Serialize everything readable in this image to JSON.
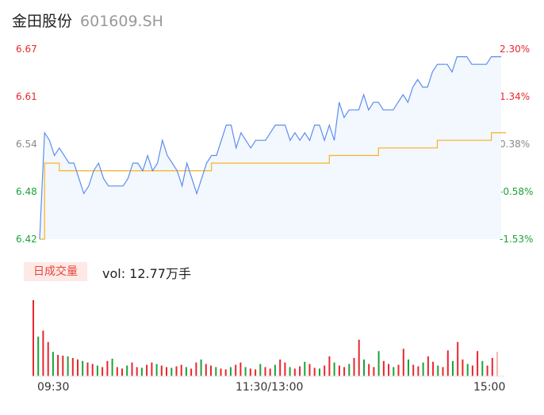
{
  "header": {
    "name": "金田股份",
    "code": "601609.SH"
  },
  "colors": {
    "up": "#e8262d",
    "down": "#1aa33a",
    "neutral": "#888888",
    "price_line": "#5b8def",
    "avg_line": "#f5b324",
    "area": "#f3f7fe"
  },
  "chart_data": [
    {
      "type": "line",
      "title": "",
      "y_ticks_left": [
        "6.67",
        "6.61",
        "6.54",
        "6.48",
        "6.42"
      ],
      "y_ticks_right": [
        "2.30%",
        "1.34%",
        "0.38%",
        "-0.58%",
        "-1.53%"
      ],
      "x_ticks": [
        "09:30",
        "11:30/13:00",
        "15:00"
      ],
      "ylim": [
        6.42,
        6.67
      ],
      "series": [
        {
          "role": "price",
          "values": [
            6.42,
            6.56,
            6.55,
            6.53,
            6.54,
            6.53,
            6.52,
            6.52,
            6.5,
            6.48,
            6.49,
            6.51,
            6.52,
            6.5,
            6.49,
            6.49,
            6.49,
            6.49,
            6.5,
            6.52,
            6.52,
            6.51,
            6.53,
            6.51,
            6.52,
            6.55,
            6.53,
            6.52,
            6.51,
            6.49,
            6.52,
            6.5,
            6.48,
            6.5,
            6.52,
            6.53,
            6.53,
            6.55,
            6.57,
            6.57,
            6.54,
            6.56,
            6.55,
            6.54,
            6.55,
            6.55,
            6.55,
            6.56,
            6.57,
            6.57,
            6.57,
            6.55,
            6.56,
            6.55,
            6.56,
            6.55,
            6.57,
            6.57,
            6.55,
            6.57,
            6.55,
            6.6,
            6.58,
            6.59,
            6.59,
            6.59,
            6.61,
            6.59,
            6.6,
            6.6,
            6.59,
            6.59,
            6.59,
            6.6,
            6.61,
            6.6,
            6.62,
            6.63,
            6.62,
            6.62,
            6.64,
            6.65,
            6.65,
            6.65,
            6.64,
            6.66,
            6.66,
            6.66,
            6.65,
            6.65,
            6.65,
            6.65,
            6.66,
            6.66,
            6.66
          ],
          "start_time": "09:30"
        },
        {
          "role": "average",
          "values": [
            6.42,
            6.52,
            6.52,
            6.52,
            6.51,
            6.51,
            6.51,
            6.51,
            6.51,
            6.51,
            6.51,
            6.51,
            6.51,
            6.51,
            6.51,
            6.51,
            6.51,
            6.51,
            6.51,
            6.51,
            6.51,
            6.51,
            6.51,
            6.51,
            6.51,
            6.51,
            6.51,
            6.51,
            6.51,
            6.51,
            6.51,
            6.51,
            6.51,
            6.51,
            6.51,
            6.52,
            6.52,
            6.52,
            6.52,
            6.52,
            6.52,
            6.52,
            6.52,
            6.52,
            6.52,
            6.52,
            6.52,
            6.52,
            6.52,
            6.52,
            6.52,
            6.52,
            6.52,
            6.52,
            6.52,
            6.52,
            6.52,
            6.52,
            6.52,
            6.53,
            6.53,
            6.53,
            6.53,
            6.53,
            6.53,
            6.53,
            6.53,
            6.53,
            6.53,
            6.54,
            6.54,
            6.54,
            6.54,
            6.54,
            6.54,
            6.54,
            6.54,
            6.54,
            6.54,
            6.54,
            6.54,
            6.55,
            6.55,
            6.55,
            6.55,
            6.55,
            6.55,
            6.55,
            6.55,
            6.55,
            6.55,
            6.55,
            6.56,
            6.56,
            6.56,
            6.56
          ]
        }
      ]
    },
    {
      "type": "bar",
      "title": "",
      "label": "日成交量",
      "summary": "vol: 12.77万手",
      "values": [
        1.0,
        0.52,
        0.6,
        0.45,
        0.32,
        0.28,
        0.27,
        0.26,
        0.24,
        0.22,
        0.2,
        0.18,
        0.16,
        0.14,
        0.12,
        0.2,
        0.23,
        0.12,
        0.1,
        0.14,
        0.18,
        0.12,
        0.11,
        0.15,
        0.18,
        0.16,
        0.14,
        0.12,
        0.11,
        0.13,
        0.15,
        0.12,
        0.1,
        0.18,
        0.22,
        0.16,
        0.14,
        0.12,
        0.1,
        0.09,
        0.12,
        0.15,
        0.18,
        0.12,
        0.1,
        0.09,
        0.16,
        0.12,
        0.1,
        0.15,
        0.22,
        0.18,
        0.12,
        0.1,
        0.13,
        0.19,
        0.16,
        0.11,
        0.1,
        0.14,
        0.26,
        0.18,
        0.14,
        0.12,
        0.16,
        0.24,
        0.48,
        0.22,
        0.16,
        0.12,
        0.33,
        0.2,
        0.16,
        0.12,
        0.15,
        0.36,
        0.22,
        0.15,
        0.13,
        0.18,
        0.26,
        0.19,
        0.14,
        0.12,
        0.34,
        0.2,
        0.45,
        0.22,
        0.16,
        0.14,
        0.33,
        0.2,
        0.14,
        0.24,
        0.32
      ]
    }
  ]
}
